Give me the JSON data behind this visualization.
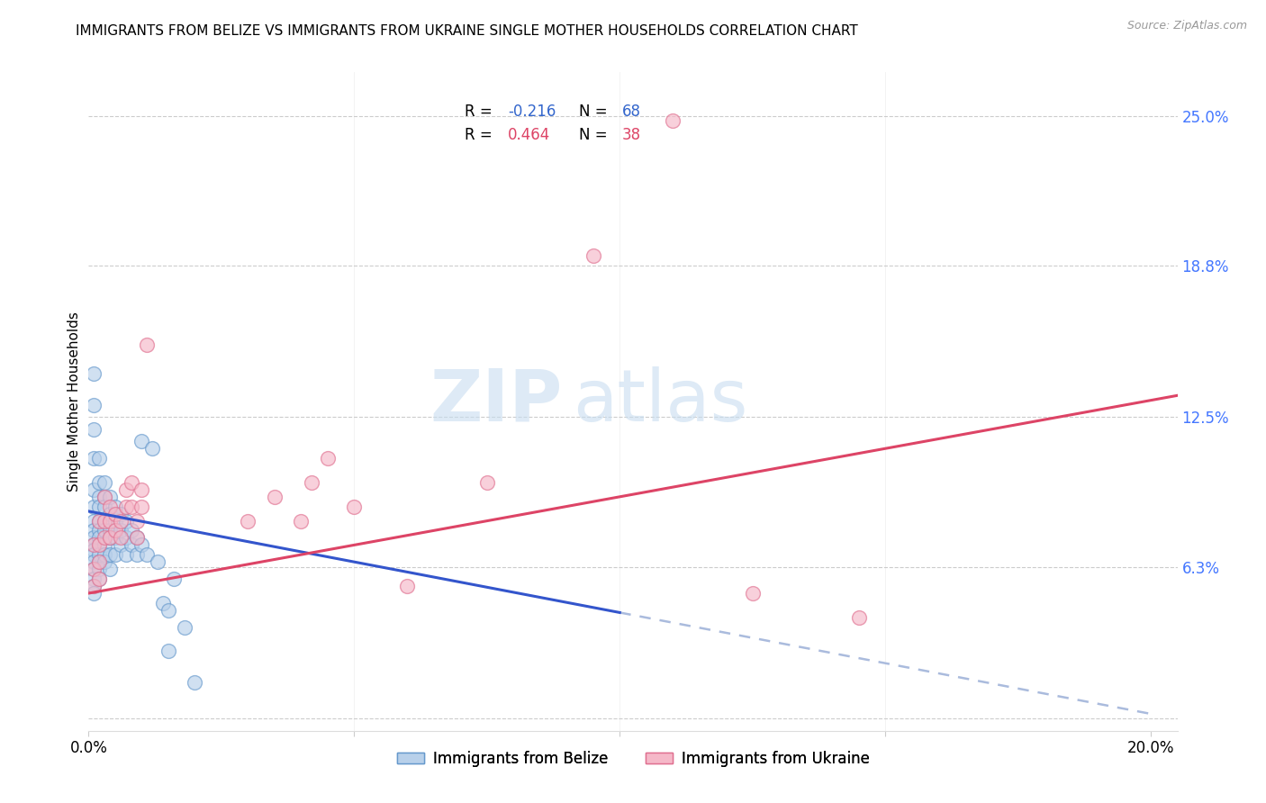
{
  "title": "IMMIGRANTS FROM BELIZE VS IMMIGRANTS FROM UKRAINE SINGLE MOTHER HOUSEHOLDS CORRELATION CHART",
  "source": "Source: ZipAtlas.com",
  "ylabel": "Single Mother Households",
  "y_ticks": [
    0.0,
    0.063,
    0.125,
    0.188,
    0.25
  ],
  "y_tick_labels": [
    "",
    "6.3%",
    "12.5%",
    "18.8%",
    "25.0%"
  ],
  "x_lim": [
    0.0,
    0.205
  ],
  "y_lim": [
    -0.005,
    0.268
  ],
  "belize_fill": "#b8d0ea",
  "belize_edge": "#6699cc",
  "ukraine_fill": "#f5b8c8",
  "ukraine_edge": "#e07090",
  "line_belize": "#3355cc",
  "line_ukraine": "#dd4466",
  "line_belize_ext": "#aabbdd",
  "r_belize": -0.216,
  "n_belize": 68,
  "r_ukraine": 0.464,
  "n_ukraine": 38,
  "watermark_zip": "ZIP",
  "watermark_atlas": "atlas",
  "belize_points": [
    [
      0.001,
      0.143
    ],
    [
      0.001,
      0.13
    ],
    [
      0.001,
      0.12
    ],
    [
      0.001,
      0.108
    ],
    [
      0.001,
      0.095
    ],
    [
      0.001,
      0.088
    ],
    [
      0.001,
      0.082
    ],
    [
      0.001,
      0.078
    ],
    [
      0.001,
      0.075
    ],
    [
      0.001,
      0.072
    ],
    [
      0.001,
      0.07
    ],
    [
      0.001,
      0.068
    ],
    [
      0.001,
      0.065
    ],
    [
      0.001,
      0.062
    ],
    [
      0.001,
      0.058
    ],
    [
      0.001,
      0.055
    ],
    [
      0.001,
      0.052
    ],
    [
      0.002,
      0.108
    ],
    [
      0.002,
      0.098
    ],
    [
      0.002,
      0.092
    ],
    [
      0.002,
      0.088
    ],
    [
      0.002,
      0.082
    ],
    [
      0.002,
      0.078
    ],
    [
      0.002,
      0.075
    ],
    [
      0.002,
      0.072
    ],
    [
      0.002,
      0.068
    ],
    [
      0.002,
      0.065
    ],
    [
      0.002,
      0.062
    ],
    [
      0.002,
      0.058
    ],
    [
      0.003,
      0.098
    ],
    [
      0.003,
      0.092
    ],
    [
      0.003,
      0.088
    ],
    [
      0.003,
      0.082
    ],
    [
      0.003,
      0.078
    ],
    [
      0.003,
      0.072
    ],
    [
      0.003,
      0.068
    ],
    [
      0.003,
      0.065
    ],
    [
      0.004,
      0.092
    ],
    [
      0.004,
      0.085
    ],
    [
      0.004,
      0.078
    ],
    [
      0.004,
      0.075
    ],
    [
      0.004,
      0.068
    ],
    [
      0.004,
      0.062
    ],
    [
      0.005,
      0.088
    ],
    [
      0.005,
      0.082
    ],
    [
      0.005,
      0.075
    ],
    [
      0.005,
      0.068
    ],
    [
      0.006,
      0.085
    ],
    [
      0.006,
      0.078
    ],
    [
      0.006,
      0.072
    ],
    [
      0.007,
      0.082
    ],
    [
      0.007,
      0.075
    ],
    [
      0.007,
      0.068
    ],
    [
      0.008,
      0.078
    ],
    [
      0.008,
      0.072
    ],
    [
      0.009,
      0.075
    ],
    [
      0.009,
      0.068
    ],
    [
      0.01,
      0.072
    ],
    [
      0.01,
      0.115
    ],
    [
      0.011,
      0.068
    ],
    [
      0.012,
      0.112
    ],
    [
      0.013,
      0.065
    ],
    [
      0.014,
      0.048
    ],
    [
      0.015,
      0.045
    ],
    [
      0.015,
      0.028
    ],
    [
      0.016,
      0.058
    ],
    [
      0.018,
      0.038
    ],
    [
      0.02,
      0.015
    ]
  ],
  "ukraine_points": [
    [
      0.001,
      0.072
    ],
    [
      0.001,
      0.062
    ],
    [
      0.001,
      0.055
    ],
    [
      0.002,
      0.082
    ],
    [
      0.002,
      0.072
    ],
    [
      0.002,
      0.065
    ],
    [
      0.002,
      0.058
    ],
    [
      0.003,
      0.092
    ],
    [
      0.003,
      0.082
    ],
    [
      0.003,
      0.075
    ],
    [
      0.004,
      0.088
    ],
    [
      0.004,
      0.082
    ],
    [
      0.004,
      0.075
    ],
    [
      0.005,
      0.085
    ],
    [
      0.005,
      0.078
    ],
    [
      0.006,
      0.082
    ],
    [
      0.006,
      0.075
    ],
    [
      0.007,
      0.095
    ],
    [
      0.007,
      0.088
    ],
    [
      0.008,
      0.098
    ],
    [
      0.008,
      0.088
    ],
    [
      0.009,
      0.082
    ],
    [
      0.009,
      0.075
    ],
    [
      0.01,
      0.095
    ],
    [
      0.01,
      0.088
    ],
    [
      0.011,
      0.155
    ],
    [
      0.03,
      0.082
    ],
    [
      0.035,
      0.092
    ],
    [
      0.04,
      0.082
    ],
    [
      0.042,
      0.098
    ],
    [
      0.045,
      0.108
    ],
    [
      0.05,
      0.088
    ],
    [
      0.06,
      0.055
    ],
    [
      0.075,
      0.098
    ],
    [
      0.095,
      0.192
    ],
    [
      0.11,
      0.248
    ],
    [
      0.125,
      0.052
    ],
    [
      0.145,
      0.042
    ]
  ]
}
